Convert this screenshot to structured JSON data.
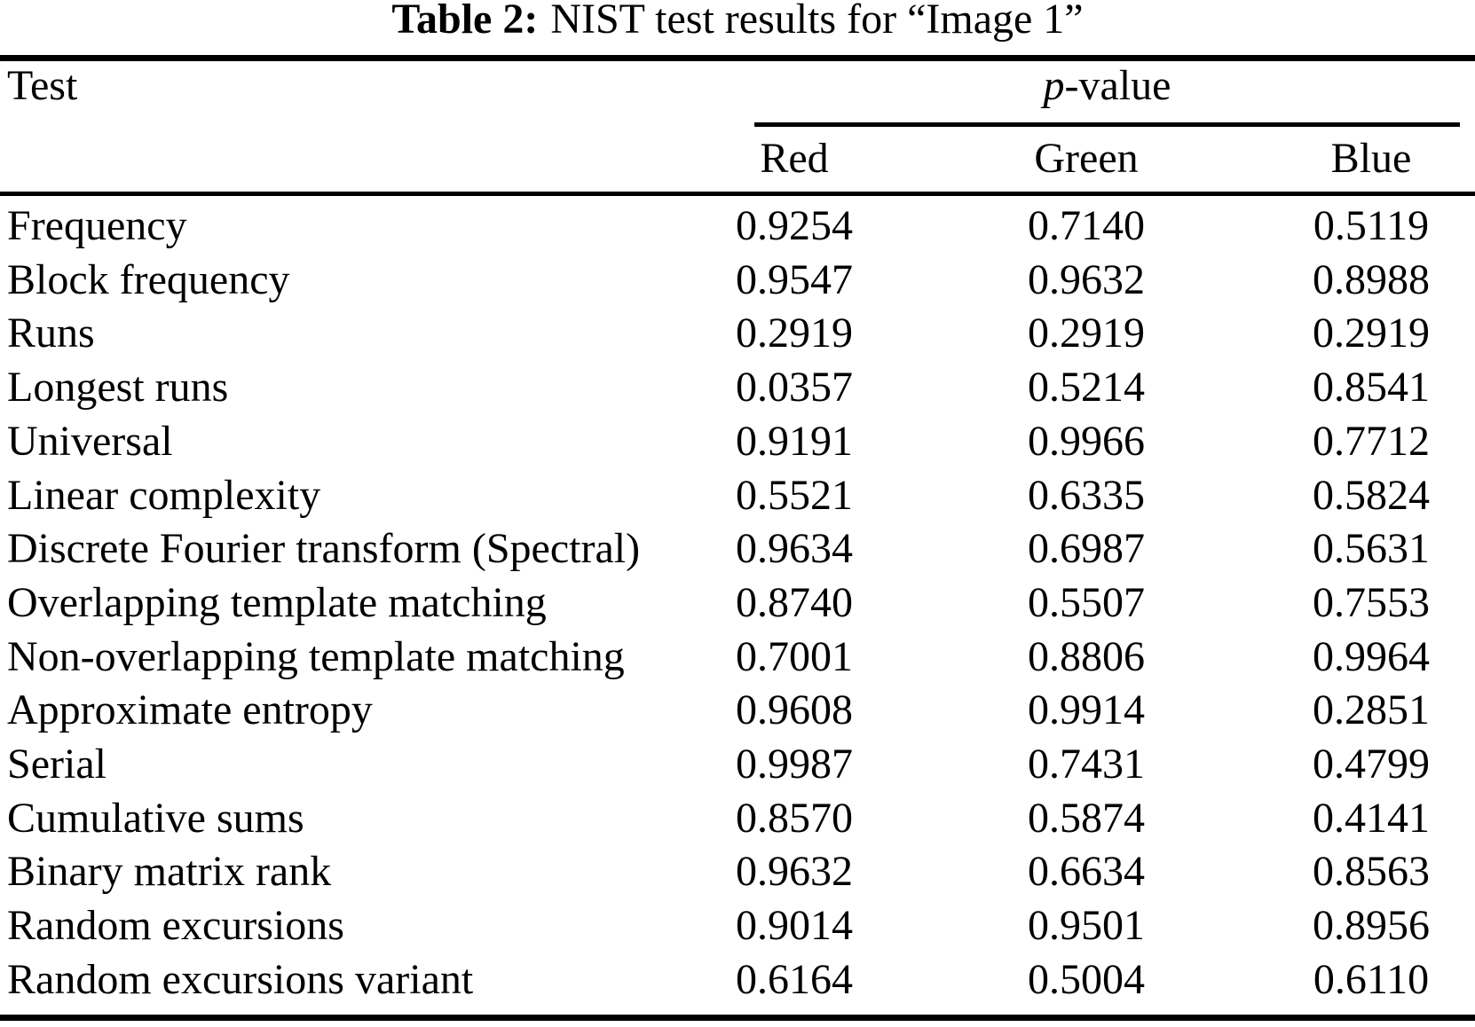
{
  "caption": {
    "label": "Table 2:",
    "text": "NIST test results for “Image 1”"
  },
  "table": {
    "header": {
      "test": "Test",
      "p_value": {
        "italic": "p",
        "rest": "-value"
      },
      "channels": {
        "red": "Red",
        "green": "Green",
        "blue": "Blue"
      }
    },
    "rows": [
      {
        "test": "Frequency",
        "red": "0.9254",
        "green": "0.7140",
        "blue": "0.5119"
      },
      {
        "test": "Block frequency",
        "red": "0.9547",
        "green": "0.9632",
        "blue": "0.8988"
      },
      {
        "test": "Runs",
        "red": "0.2919",
        "green": "0.2919",
        "blue": "0.2919"
      },
      {
        "test": "Longest runs",
        "red": "0.0357",
        "green": "0.5214",
        "blue": "0.8541"
      },
      {
        "test": "Universal",
        "red": "0.9191",
        "green": "0.9966",
        "blue": "0.7712"
      },
      {
        "test": "Linear complexity",
        "red": "0.5521",
        "green": "0.6335",
        "blue": "0.5824"
      },
      {
        "test": "Discrete Fourier transform (Spectral)",
        "red": "0.9634",
        "green": "0.6987",
        "blue": "0.5631"
      },
      {
        "test": "Overlapping template matching",
        "red": "0.8740",
        "green": "0.5507",
        "blue": "0.7553"
      },
      {
        "test": "Non-overlapping template matching",
        "red": "0.7001",
        "green": "0.8806",
        "blue": "0.9964"
      },
      {
        "test": "Approximate entropy",
        "red": "0.9608",
        "green": "0.9914",
        "blue": "0.2851"
      },
      {
        "test": "Serial",
        "red": "0.9987",
        "green": "0.7431",
        "blue": "0.4799"
      },
      {
        "test": "Cumulative sums",
        "red": "0.8570",
        "green": "0.5874",
        "blue": "0.4141"
      },
      {
        "test": "Binary matrix rank",
        "red": "0.9632",
        "green": "0.6634",
        "blue": "0.8563"
      },
      {
        "test": "Random excursions",
        "red": "0.9014",
        "green": "0.9501",
        "blue": "0.8956"
      },
      {
        "test": "Random excursions variant",
        "red": "0.6164",
        "green": "0.5004",
        "blue": "0.6110"
      }
    ]
  }
}
